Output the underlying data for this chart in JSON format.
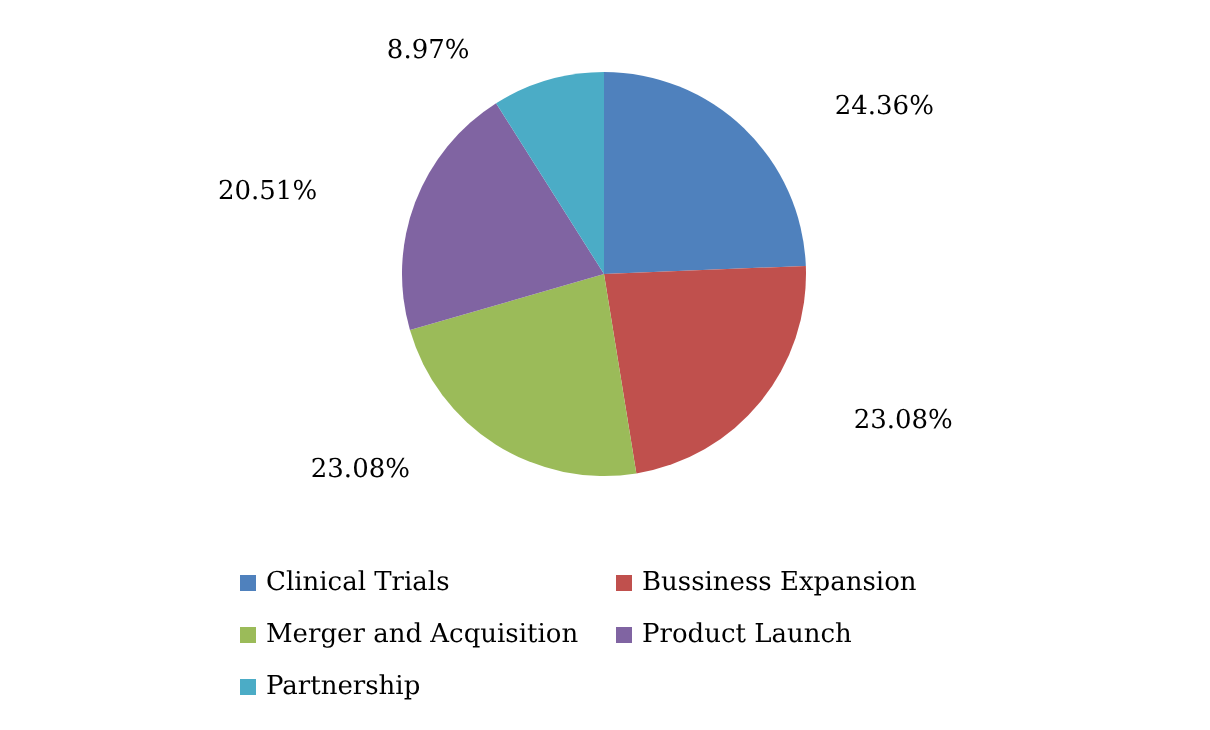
{
  "chart_data": {
    "type": "pie",
    "categories": [
      "Clinical Trials",
      "Bussiness Expansion",
      "Merger and Acquisition",
      "Product Launch",
      "Partnership"
    ],
    "values": [
      24.36,
      23.08,
      23.08,
      20.51,
      8.97
    ],
    "value_labels": [
      "24.36%",
      "23.08%",
      "23.08%",
      "20.51%",
      "8.97%"
    ],
    "colors": [
      "#4f81bd",
      "#c0504d",
      "#9bbb59",
      "#8064a2",
      "#4bacc6"
    ],
    "legend": "bottom"
  }
}
